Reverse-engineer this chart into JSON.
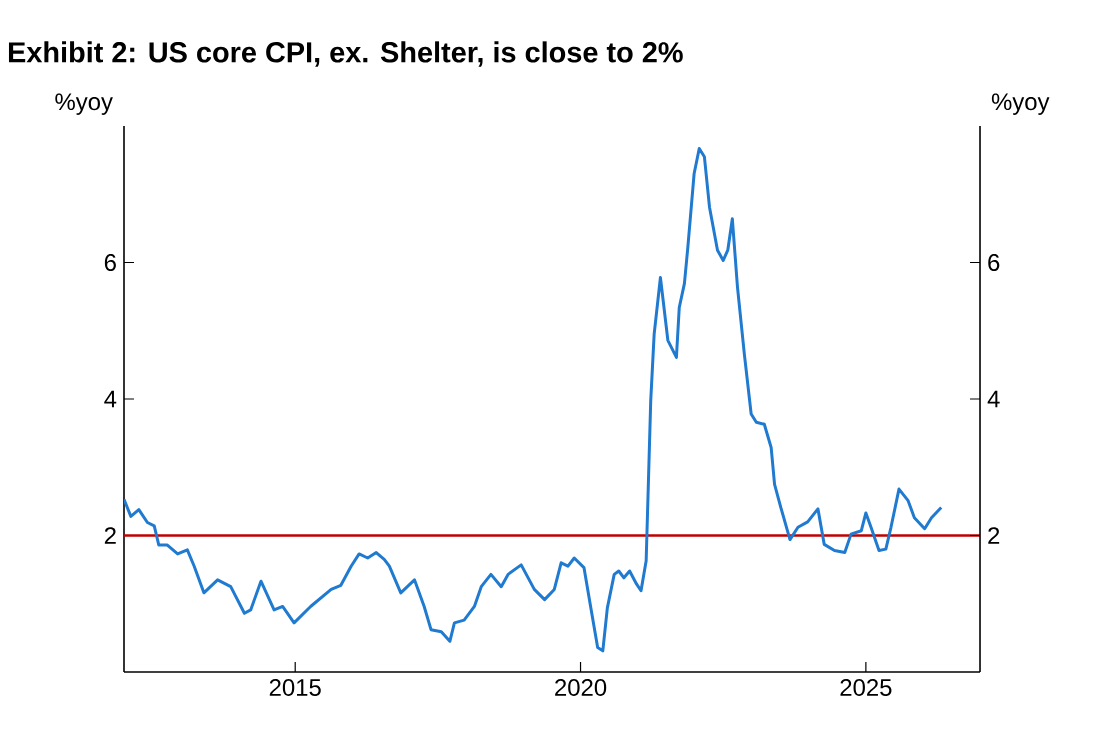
{
  "chart_data": {
    "type": "line",
    "title": "Exhibit 2: US core CPI, ex. Shelter, is close to 2%",
    "ylabel": "%yoy",
    "y2label": "%yoy",
    "xlim": [
      2012,
      2027
    ],
    "xticks": [
      2015,
      2020,
      2025
    ],
    "ylim": [
      0,
      8
    ],
    "yticks": [
      2,
      4,
      6
    ],
    "y2lim": [
      0,
      8
    ],
    "y2ticks": [
      2,
      4,
      6
    ],
    "ref_lines": [
      {
        "axis": "y",
        "value": 2,
        "color": "#c00000"
      }
    ],
    "series": [
      {
        "color": "#1f7ad0",
        "x": [
          2012.0,
          2012.12,
          2012.26,
          2012.41,
          2012.53,
          2012.61,
          2012.76,
          2012.94,
          2013.11,
          2013.23,
          2013.4,
          2013.64,
          2013.87,
          2014.11,
          2014.22,
          2014.4,
          2014.63,
          2014.78,
          2014.98,
          2015.27,
          2015.63,
          2015.8,
          2015.98,
          2016.12,
          2016.27,
          2016.42,
          2016.56,
          2016.65,
          2016.85,
          2017.09,
          2017.26,
          2017.38,
          2017.56,
          2017.71,
          2017.79,
          2017.96,
          2018.14,
          2018.26,
          2018.43,
          2018.61,
          2018.73,
          2018.96,
          2019.19,
          2019.37,
          2019.54,
          2019.66,
          2019.78,
          2019.89,
          2020.06,
          2020.18,
          2020.3,
          2020.39,
          2020.47,
          2020.59,
          2020.67,
          2020.76,
          2020.86,
          2020.98,
          2021.06,
          2021.15,
          2021.23,
          2021.29,
          2021.4,
          2021.53,
          2021.68,
          2021.73,
          2021.82,
          2021.88,
          2021.99,
          2022.08,
          2022.17,
          2022.26,
          2022.4,
          2022.5,
          2022.58,
          2022.66,
          2022.75,
          2022.87,
          2022.99,
          2023.08,
          2023.22,
          2023.34,
          2023.4,
          2023.51,
          2023.67,
          2023.81,
          2023.98,
          2024.16,
          2024.27,
          2024.45,
          2024.63,
          2024.74,
          2024.92,
          2025.0,
          2025.09,
          2025.23,
          2025.35,
          2025.44,
          2025.58,
          2025.74,
          2025.85,
          2026.03,
          2026.15,
          2026.32
        ],
        "values": [
          2.53,
          2.28,
          2.38,
          2.19,
          2.14,
          1.86,
          1.86,
          1.73,
          1.79,
          1.55,
          1.16,
          1.35,
          1.25,
          0.86,
          0.91,
          1.33,
          0.91,
          0.96,
          0.72,
          0.96,
          1.21,
          1.27,
          1.55,
          1.73,
          1.67,
          1.75,
          1.65,
          1.55,
          1.16,
          1.35,
          0.96,
          0.62,
          0.59,
          0.45,
          0.72,
          0.76,
          0.96,
          1.25,
          1.43,
          1.25,
          1.43,
          1.57,
          1.21,
          1.06,
          1.21,
          1.6,
          1.55,
          1.67,
          1.53,
          0.94,
          0.36,
          0.31,
          0.94,
          1.43,
          1.48,
          1.38,
          1.48,
          1.29,
          1.19,
          1.63,
          3.98,
          4.95,
          5.78,
          4.86,
          4.61,
          5.34,
          5.69,
          6.22,
          7.3,
          7.67,
          7.55,
          6.81,
          6.18,
          6.03,
          6.18,
          6.64,
          5.64,
          4.66,
          3.78,
          3.66,
          3.63,
          3.29,
          2.75,
          2.41,
          1.94,
          2.12,
          2.2,
          2.39,
          1.87,
          1.78,
          1.75,
          2.02,
          2.07,
          2.33,
          2.12,
          1.78,
          1.8,
          2.12,
          2.68,
          2.51,
          2.26,
          2.1,
          2.26,
          2.41
        ]
      }
    ]
  }
}
